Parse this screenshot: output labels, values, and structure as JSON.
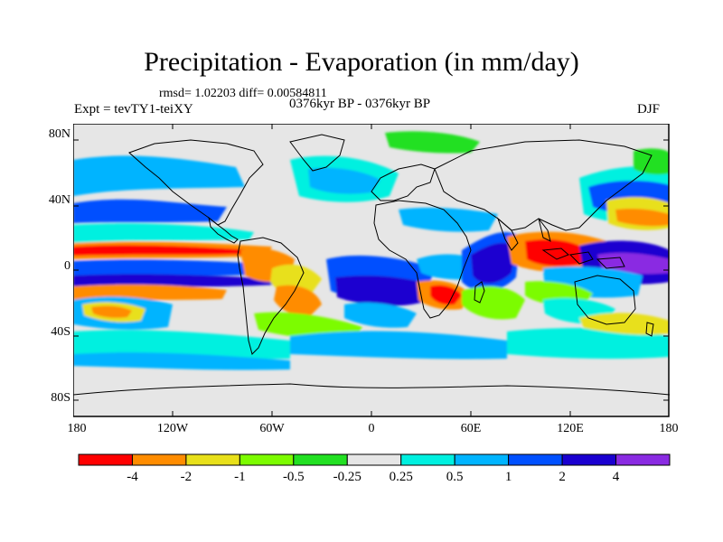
{
  "title": "Precipitation - Evaporation (in mm/day)",
  "stats": "rmsd= 1.02203 diff= 0.00584811",
  "period": "0376kyr BP - 0376kyr BP",
  "experiment": "Expt = tevTY1-teiXY",
  "season": "DJF",
  "lat_axis": [
    "80N",
    "40N",
    "0",
    "40S",
    "80S"
  ],
  "lon_axis": [
    "180",
    "120W",
    "60W",
    "0",
    "60E",
    "120E",
    "180"
  ],
  "colorbar": {
    "labels": [
      "-4",
      "-2",
      "-1",
      "-0.5",
      "-0.25",
      "0.25",
      "0.5",
      "1",
      "2",
      "4"
    ],
    "colors": [
      "#ff0000",
      "#ff8c00",
      "#e8e01a",
      "#7cfc00",
      "#22e022",
      "#e6e6e6",
      "#00f0e0",
      "#00b4ff",
      "#0050ff",
      "#1a00d0",
      "#8a2be2"
    ]
  }
}
